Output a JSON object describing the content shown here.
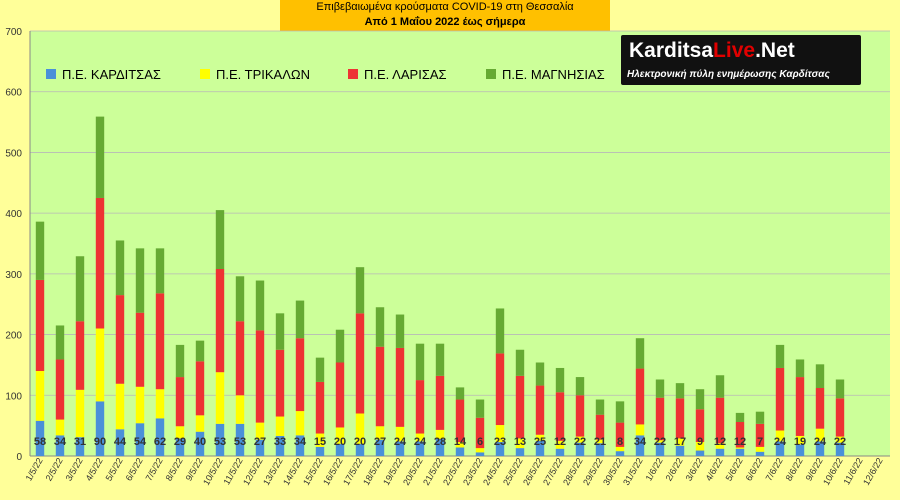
{
  "header": {
    "line1": "Επιβεβαιωμένα κρούσματα COVID-19 στη Θεσσαλία",
    "line2": "Από 1 Μαΐου 2022 έως σήμερα"
  },
  "logo": {
    "brand_main": "Karditsa",
    "brand_accent": "Live",
    "brand_tail": ".Net",
    "tagline": "Ηλεκτρονική πύλη ενημέρωσης Καρδίτσας"
  },
  "chart_data": {
    "type": "bar",
    "stacked": true,
    "title": "Επιβεβαιωμένα κρούσματα COVID-19 στη Θεσσαλία",
    "subtitle": "Από 1 Μαΐου 2022 έως σήμερα",
    "xlabel": "",
    "ylabel": "",
    "ylim": [
      0,
      700
    ],
    "yticks": [
      0,
      100,
      200,
      300,
      400,
      500,
      600,
      700
    ],
    "grid": true,
    "legend_position": "top-left",
    "categories": [
      "1/5/22",
      "2/5/22",
      "3/5/22",
      "4/5/22",
      "5/5/22",
      "6/5/22",
      "7/5/22",
      "8/5/22",
      "9/5/22",
      "10/5/22",
      "11/5/22",
      "12/5/22",
      "13/5/22",
      "14/5/22",
      "15/5/22",
      "16/5/22",
      "17/5/22",
      "18/5/22",
      "19/5/22",
      "20/5/22",
      "21/5/22",
      "22/5/22",
      "23/5/22",
      "24/5/22",
      "25/5/22",
      "26/5/22",
      "27/5/22",
      "28/5/22",
      "29/5/22",
      "30/5/22",
      "31/5/22",
      "1/6/22",
      "2/6/22",
      "3/6/22",
      "4/6/22",
      "5/6/22",
      "6/6/22",
      "7/6/22",
      "8/6/22",
      "9/6/22",
      "10/6/22",
      "11/6/22",
      "12/6/22"
    ],
    "series": [
      {
        "name": "Π.Ε. ΚΑΡΔΙΤΣΑΣ",
        "color": "#4a90d9",
        "show_labels": true,
        "values": [
          58,
          34,
          31,
          90,
          44,
          54,
          62,
          29,
          40,
          53,
          53,
          27,
          33,
          34,
          15,
          20,
          20,
          27,
          24,
          24,
          28,
          14,
          6,
          23,
          13,
          25,
          12,
          22,
          21,
          8,
          34,
          22,
          17,
          9,
          12,
          12,
          7,
          24,
          19,
          24,
          22,
          null,
          null
        ]
      },
      {
        "name": "Π.Ε. ΤΡΙΚΑΛΩΝ",
        "color": "#ffff00",
        "show_labels": false,
        "values": [
          82,
          26,
          78,
          120,
          75,
          60,
          48,
          20,
          27,
          85,
          47,
          28,
          32,
          40,
          22,
          27,
          50,
          22,
          24,
          13,
          15,
          9,
          7,
          28,
          16,
          10,
          13,
          10,
          6,
          7,
          18,
          4,
          12,
          14,
          9,
          2,
          8,
          18,
          14,
          21,
          10,
          null,
          null
        ]
      },
      {
        "name": "Π.Ε. ΛΑΡΙΣΑΣ",
        "color": "#ee3333",
        "show_labels": false,
        "values": [
          150,
          99,
          113,
          215,
          146,
          122,
          158,
          81,
          89,
          170,
          122,
          152,
          110,
          120,
          85,
          107,
          165,
          131,
          130,
          88,
          89,
          70,
          50,
          118,
          103,
          81,
          80,
          68,
          41,
          40,
          92,
          70,
          66,
          54,
          75,
          42,
          38,
          103,
          97,
          67,
          63,
          null,
          null
        ]
      },
      {
        "name": "Π.Ε. ΜΑΓΝΗΣΙΑΣ",
        "color": "#66aa33",
        "show_labels": false,
        "values": [
          96,
          56,
          107,
          134,
          90,
          106,
          74,
          53,
          34,
          97,
          74,
          82,
          60,
          62,
          40,
          54,
          76,
          65,
          55,
          60,
          53,
          20,
          30,
          74,
          43,
          38,
          40,
          30,
          25,
          35,
          50,
          30,
          25,
          33,
          37,
          15,
          20,
          38,
          29,
          39,
          31,
          null,
          null
        ]
      }
    ]
  }
}
